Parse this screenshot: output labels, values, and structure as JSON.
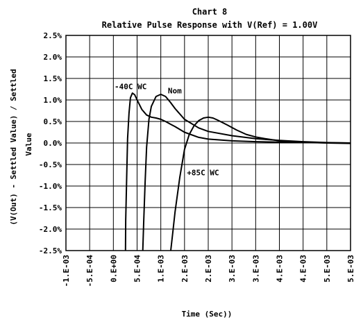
{
  "chart_data": {
    "type": "line",
    "title": "Chart 8",
    "subtitle": "Relative Pulse Response with V(Ref) = 1.00V",
    "xlabel": "Time (Sec))",
    "ylabel": "(V(Out) - Settled Value) / Settled",
    "ylabel_extra": "Value",
    "xlim": [
      -0.001,
      0.005
    ],
    "ylim": [
      -2.5,
      2.5
    ],
    "grid": true,
    "x_ticks": [
      {
        "value": -0.001,
        "label": "-1.E-03"
      },
      {
        "value": -0.0005,
        "label": "-5.E-04"
      },
      {
        "value": 0,
        "label": "0.E+00"
      },
      {
        "value": 0.0005,
        "label": "5.E-04"
      },
      {
        "value": 0.001,
        "label": "1.E-03"
      },
      {
        "value": 0.0015,
        "label": "2.E-03"
      },
      {
        "value": 0.002,
        "label": "2.E-03"
      },
      {
        "value": 0.0025,
        "label": "3.E-03"
      },
      {
        "value": 0.003,
        "label": "3.E-03"
      },
      {
        "value": 0.0035,
        "label": "4.E-03"
      },
      {
        "value": 0.004,
        "label": "4.E-03"
      },
      {
        "value": 0.0045,
        "label": "5.E-03"
      },
      {
        "value": 0.005,
        "label": "5.E-03"
      }
    ],
    "y_ticks": [
      {
        "value": 2.5,
        "label": "2.5%"
      },
      {
        "value": 2.0,
        "label": "2.0%"
      },
      {
        "value": 1.5,
        "label": "1.5%"
      },
      {
        "value": 1.0,
        "label": "1.0%"
      },
      {
        "value": 0.5,
        "label": "0.5%"
      },
      {
        "value": 0.0,
        "label": "0.0%"
      },
      {
        "value": -0.5,
        "label": "-0.5%"
      },
      {
        "value": -1.0,
        "label": "-1.0%"
      },
      {
        "value": -1.5,
        "label": "-1.5%"
      },
      {
        "value": -2.0,
        "label": "-2.0%"
      },
      {
        "value": -2.5,
        "label": "-2.5%"
      }
    ],
    "series": [
      {
        "name": "-40C WC",
        "x": [
          0.000255,
          0.00026,
          0.00028,
          0.0003,
          0.00033,
          0.00036,
          0.0004,
          0.00045,
          0.0005,
          0.0006,
          0.0007,
          0.0008,
          0.0009,
          0.001,
          0.0011,
          0.0012,
          0.0013,
          0.0015,
          0.0018,
          0.002,
          0.0025,
          0.003,
          0.0035,
          0.004,
          0.0045,
          0.005
        ],
        "y": [
          -2.5,
          -1.8,
          -0.8,
          0.1,
          0.7,
          1.05,
          1.16,
          1.12,
          1.0,
          0.78,
          0.65,
          0.6,
          0.58,
          0.55,
          0.5,
          0.44,
          0.38,
          0.25,
          0.13,
          0.09,
          0.05,
          0.03,
          0.02,
          0.01,
          0.005,
          0.0
        ]
      },
      {
        "name": "Nom",
        "x": [
          0.00062,
          0.00064,
          0.00067,
          0.0007,
          0.00075,
          0.0008,
          0.0009,
          0.001,
          0.0011,
          0.0012,
          0.0013,
          0.0015,
          0.0018,
          0.002,
          0.0025,
          0.003,
          0.0035,
          0.004,
          0.0045,
          0.005
        ],
        "y": [
          -2.5,
          -1.8,
          -0.9,
          -0.1,
          0.55,
          0.85,
          1.08,
          1.13,
          1.08,
          0.95,
          0.8,
          0.55,
          0.35,
          0.27,
          0.17,
          0.1,
          0.06,
          0.03,
          0.01,
          0.0
        ]
      },
      {
        "name": "+85C WC",
        "x": [
          0.00121,
          0.00125,
          0.0013,
          0.0014,
          0.0015,
          0.0016,
          0.0017,
          0.0018,
          0.0019,
          0.002,
          0.0021,
          0.0022,
          0.0024,
          0.0026,
          0.0028,
          0.003,
          0.0032,
          0.0035,
          0.004,
          0.0045,
          0.005
        ],
        "y": [
          -2.5,
          -2.1,
          -1.6,
          -0.8,
          -0.15,
          0.2,
          0.4,
          0.52,
          0.58,
          0.6,
          0.58,
          0.53,
          0.42,
          0.3,
          0.2,
          0.14,
          0.1,
          0.05,
          0.02,
          0.0,
          -0.01
        ]
      }
    ],
    "annotations": [
      {
        "text": "-40C WC",
        "x": 2.5e-05,
        "y": 1.25
      },
      {
        "text": "Nom",
        "x": 0.00115,
        "y": 1.15
      },
      {
        "text": "+85C WC",
        "x": 0.00155,
        "y": -0.75
      }
    ]
  }
}
